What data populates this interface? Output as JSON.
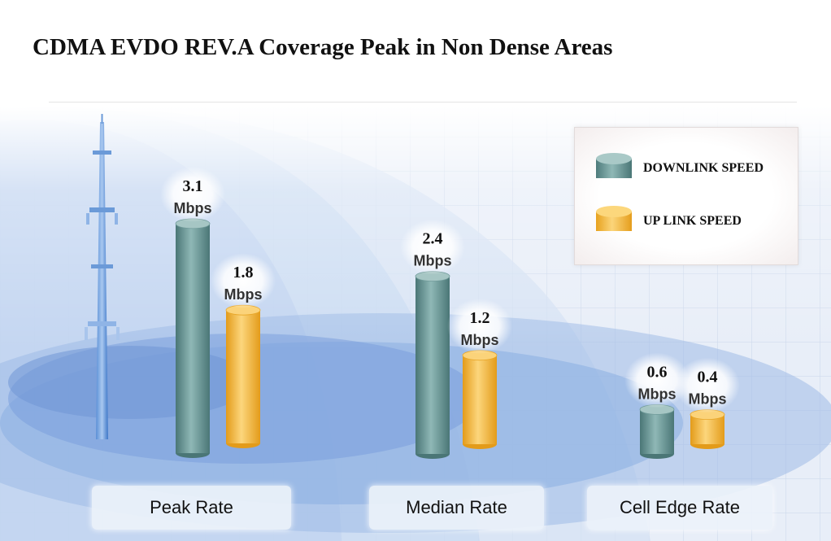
{
  "title": "CDMA EVDO REV.A Coverage Peak in Non Dense Areas",
  "legend": {
    "items": [
      {
        "label": "DOWNLINK SPEED",
        "color": "#5e8e8e"
      },
      {
        "label": "UP LINK SPEED",
        "color": "#f2b233"
      }
    ]
  },
  "chart_data": {
    "type": "bar",
    "title": "CDMA EVDO REV.A Coverage Peak in Non Dense Areas",
    "categories": [
      "Peak Rate",
      "Median Rate",
      "Cell Edge Rate"
    ],
    "unit": "Mbps",
    "series": [
      {
        "name": "DOWNLINK SPEED",
        "values": [
          3.1,
          2.4,
          0.6
        ],
        "color": "#5e8e8e"
      },
      {
        "name": "UP LINK SPEED",
        "values": [
          1.8,
          1.2,
          0.4
        ],
        "color": "#f2b233"
      }
    ],
    "legend_position": "top-right",
    "grid": false
  }
}
